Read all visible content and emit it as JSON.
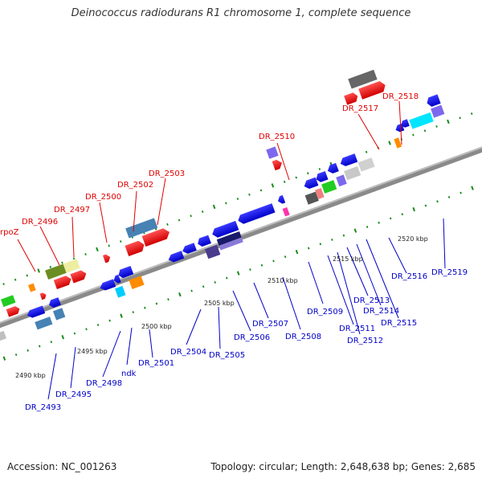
{
  "title": "Deinococcus radiodurans R1 chromosome 1, complete sequence",
  "footer": {
    "accession": "Accession: NC_001263",
    "stats": "Topology: circular; Length: 2,648,638 bp; Genes: 2,685"
  },
  "kbp_labels": [
    "2490 kbp",
    "2495 kbp",
    "2500 kbp",
    "2505 kbp",
    "2510 kbp",
    "2515 kbp",
    "2520 kbp"
  ],
  "labels_above": [
    "rpoZ",
    "DR_2496",
    "DR_2497",
    "DR_2500",
    "DR_2502",
    "DR_2503",
    "DR_2510",
    "DR_2517",
    "DR_2518"
  ],
  "labels_below": [
    "DR_2493",
    "DR_2495",
    "DR_2498",
    "ndk",
    "DR_2501",
    "DR_2504",
    "DR_2505",
    "DR_2506",
    "DR_2507",
    "DR_2508",
    "DR_2509",
    "DR_2511",
    "DR_2512",
    "DR_2513",
    "DR_2514",
    "DR_2515",
    "DR_2516",
    "DR_2519"
  ],
  "colors": {
    "forward_gene": "#ff0000",
    "reverse_gene": "#0000ff",
    "label_above": "#e00000",
    "label_below": "#0000c8",
    "backbone": "#808080",
    "tick": "#1a8a1a"
  }
}
